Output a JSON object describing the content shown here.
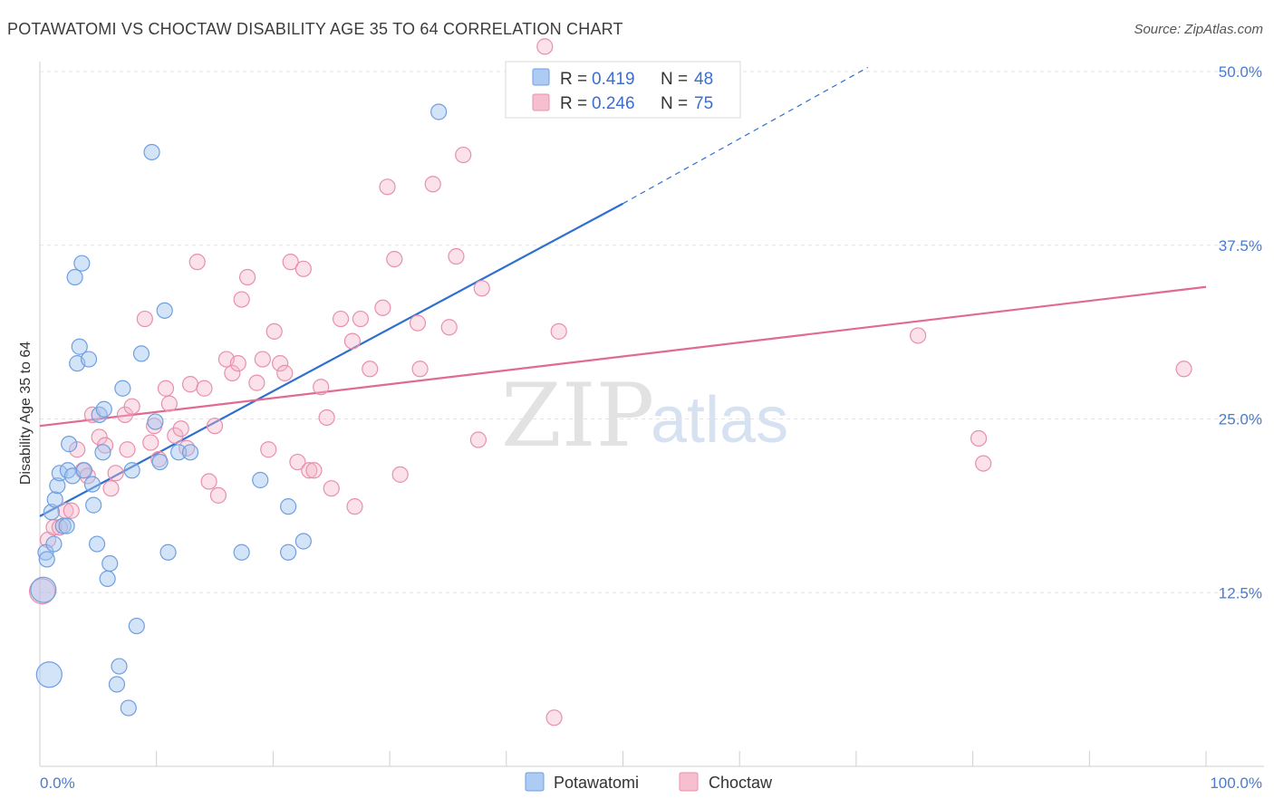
{
  "header": {
    "title": "POTAWATOMI VS CHOCTAW DISABILITY AGE 35 TO 64 CORRELATION CHART",
    "source": "Source: ZipAtlas.com"
  },
  "watermark": {
    "zip": "ZIP",
    "atlas": "atlas"
  },
  "legend": {
    "r_label": "R =",
    "n_label": "N =",
    "items": [
      {
        "name": "Potawatomi",
        "r": "0.419",
        "n": "48",
        "fill": "#aecbf3",
        "stroke": "#6f9fe0"
      },
      {
        "name": "Choctaw",
        "r": "0.246",
        "n": "75",
        "fill": "#f6bfd0",
        "stroke": "#e890ab"
      }
    ]
  },
  "colors": {
    "blue_line": "#2f6fd0",
    "pink_line": "#e06a92",
    "blue_point_fill": "rgba(160,195,240,0.45)",
    "blue_point_stroke": "#6f9fe0",
    "pink_point_fill": "rgba(245,180,200,0.40)",
    "pink_point_stroke": "#e890ab",
    "grid": "#e3e3e3",
    "tick_label": "#4a7bd0"
  },
  "chart_data": {
    "type": "scatter",
    "title": "POTAWATOMI VS CHOCTAW DISABILITY AGE 35 TO 64 CORRELATION CHART",
    "xlabel": "",
    "ylabel": "Disability Age 35 to 64",
    "xlim": [
      0,
      100
    ],
    "ylim": [
      0,
      50
    ],
    "x_tick_labels": [
      "0.0%",
      "100.0%"
    ],
    "y_ticks": [
      {
        "value": 12.5,
        "label": "12.5%"
      },
      {
        "value": 25.0,
        "label": "25.0%"
      },
      {
        "value": 37.5,
        "label": "37.5%"
      },
      {
        "value": 50.0,
        "label": "50.0%"
      }
    ],
    "series": [
      {
        "name": "Potawatomi",
        "r": 0.419,
        "n": 48,
        "trend": {
          "x0": 0,
          "y0": 18.0,
          "x1": 50,
          "y1": 40.5,
          "dashed_x1": 71,
          "dashed_y1": 50.3
        },
        "points": [
          [
            0.3,
            12.7
          ],
          [
            0.5,
            15.4
          ],
          [
            0.6,
            14.9
          ],
          [
            1.0,
            18.3
          ],
          [
            1.2,
            16.0
          ],
          [
            1.3,
            19.2
          ],
          [
            1.5,
            20.2
          ],
          [
            1.7,
            21.1
          ],
          [
            2.0,
            17.3
          ],
          [
            2.3,
            17.3
          ],
          [
            2.4,
            21.3
          ],
          [
            2.5,
            23.2
          ],
          [
            2.8,
            20.9
          ],
          [
            3.0,
            35.2
          ],
          [
            3.2,
            29.0
          ],
          [
            3.4,
            30.2
          ],
          [
            3.6,
            36.2
          ],
          [
            3.8,
            21.3
          ],
          [
            4.2,
            29.3
          ],
          [
            4.5,
            20.3
          ],
          [
            4.6,
            18.8
          ],
          [
            4.9,
            16.0
          ],
          [
            5.1,
            25.3
          ],
          [
            5.4,
            22.6
          ],
          [
            5.5,
            25.7
          ],
          [
            5.8,
            13.5
          ],
          [
            6.0,
            14.6
          ],
          [
            6.6,
            5.9
          ],
          [
            7.1,
            27.2
          ],
          [
            7.6,
            4.2
          ],
          [
            7.9,
            21.3
          ],
          [
            8.3,
            10.1
          ],
          [
            8.7,
            29.7
          ],
          [
            9.6,
            44.2
          ],
          [
            9.9,
            24.8
          ],
          [
            10.3,
            21.9
          ],
          [
            10.7,
            32.8
          ],
          [
            11.0,
            15.4
          ],
          [
            11.9,
            22.6
          ],
          [
            12.9,
            22.6
          ],
          [
            17.3,
            15.4
          ],
          [
            18.9,
            20.6
          ],
          [
            21.3,
            15.4
          ],
          [
            21.3,
            18.7
          ],
          [
            22.6,
            16.2
          ],
          [
            34.2,
            47.1
          ],
          [
            0.8,
            6.6
          ],
          [
            6.8,
            7.2
          ]
        ]
      },
      {
        "name": "Choctaw",
        "r": 0.246,
        "n": 75,
        "trend": {
          "x0": 0,
          "y0": 24.5,
          "x1": 100,
          "y1": 34.5
        },
        "points": [
          [
            0.2,
            12.6
          ],
          [
            0.7,
            16.3
          ],
          [
            1.2,
            17.2
          ],
          [
            1.7,
            17.2
          ],
          [
            2.2,
            18.4
          ],
          [
            2.7,
            18.4
          ],
          [
            3.2,
            22.8
          ],
          [
            3.7,
            21.3
          ],
          [
            4.1,
            20.9
          ],
          [
            4.5,
            25.3
          ],
          [
            5.1,
            23.7
          ],
          [
            5.6,
            23.1
          ],
          [
            6.1,
            20.0
          ],
          [
            6.5,
            21.1
          ],
          [
            7.3,
            25.3
          ],
          [
            7.5,
            22.8
          ],
          [
            7.9,
            25.9
          ],
          [
            9.0,
            32.2
          ],
          [
            9.5,
            23.3
          ],
          [
            9.8,
            24.5
          ],
          [
            10.2,
            22.1
          ],
          [
            10.8,
            27.2
          ],
          [
            11.1,
            26.1
          ],
          [
            11.6,
            23.8
          ],
          [
            12.1,
            24.3
          ],
          [
            12.6,
            22.9
          ],
          [
            12.9,
            27.5
          ],
          [
            13.5,
            36.3
          ],
          [
            14.1,
            27.2
          ],
          [
            14.5,
            20.5
          ],
          [
            15.0,
            24.5
          ],
          [
            15.3,
            19.5
          ],
          [
            16.0,
            29.3
          ],
          [
            16.5,
            28.3
          ],
          [
            17.0,
            29.0
          ],
          [
            17.3,
            33.6
          ],
          [
            17.8,
            35.2
          ],
          [
            18.6,
            27.6
          ],
          [
            19.1,
            29.3
          ],
          [
            19.6,
            22.8
          ],
          [
            20.1,
            31.3
          ],
          [
            20.6,
            29.0
          ],
          [
            21.0,
            28.3
          ],
          [
            21.5,
            36.3
          ],
          [
            22.1,
            21.9
          ],
          [
            22.6,
            35.8
          ],
          [
            23.1,
            21.3
          ],
          [
            23.5,
            21.3
          ],
          [
            24.1,
            27.3
          ],
          [
            24.6,
            25.1
          ],
          [
            25.0,
            20.0
          ],
          [
            25.8,
            32.2
          ],
          [
            26.8,
            30.6
          ],
          [
            27.0,
            18.7
          ],
          [
            27.5,
            32.2
          ],
          [
            28.3,
            28.6
          ],
          [
            29.4,
            33.0
          ],
          [
            29.8,
            41.7
          ],
          [
            30.4,
            36.5
          ],
          [
            30.9,
            21.0
          ],
          [
            32.4,
            31.9
          ],
          [
            32.6,
            28.6
          ],
          [
            33.7,
            41.9
          ],
          [
            35.1,
            31.6
          ],
          [
            35.7,
            36.7
          ],
          [
            36.3,
            44.0
          ],
          [
            37.6,
            23.5
          ],
          [
            37.9,
            34.4
          ],
          [
            43.3,
            51.8
          ],
          [
            44.1,
            3.5
          ],
          [
            44.5,
            31.3
          ],
          [
            75.3,
            31.0
          ],
          [
            80.5,
            23.6
          ],
          [
            80.9,
            21.8
          ],
          [
            98.1,
            28.6
          ]
        ]
      }
    ]
  }
}
